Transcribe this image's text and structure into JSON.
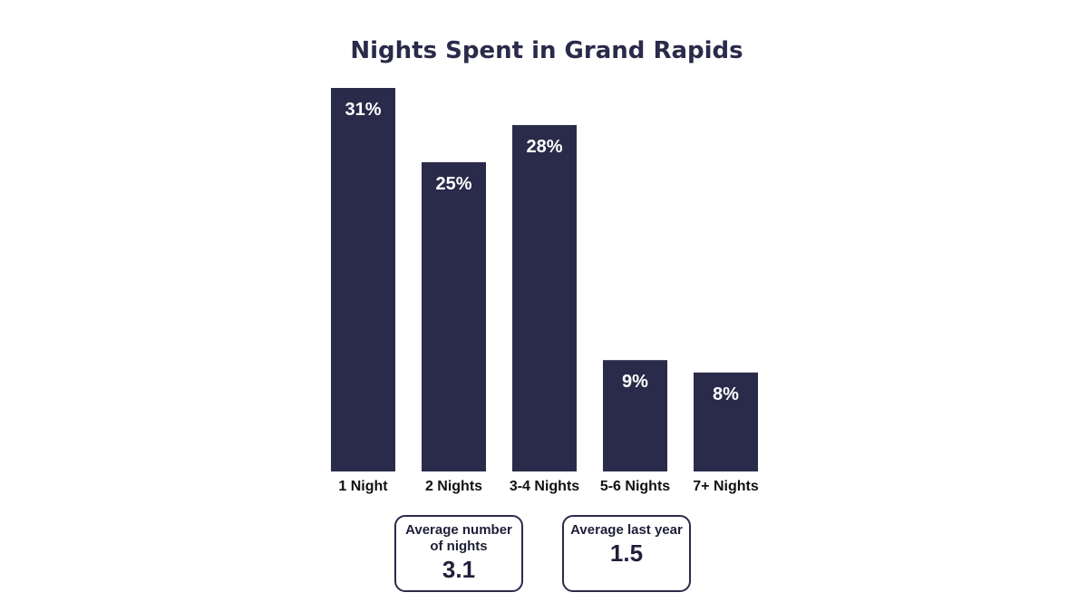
{
  "chart_data": {
    "type": "bar",
    "title": "Nights Spent in Grand Rapids",
    "categories": [
      "1 Night",
      "2 Nights",
      "3-4 Nights",
      "5-6 Nights",
      "7+ Nights"
    ],
    "values": [
      31,
      25,
      28,
      9,
      8
    ],
    "value_labels": [
      "31%",
      "25%",
      "28%",
      "9%",
      "8%"
    ],
    "unit": "%",
    "ylim": [
      0,
      31
    ],
    "grid": false,
    "legend": "none",
    "colors": {
      "bar": "#2a2a4a",
      "title": "#2a2a4a",
      "value_label": "#ffffff",
      "category_label": "#111111"
    }
  },
  "stats": {
    "average": {
      "label": "Average number of nights",
      "value": "3.1"
    },
    "last_year": {
      "label": "Average last year",
      "value": "1.5"
    }
  }
}
